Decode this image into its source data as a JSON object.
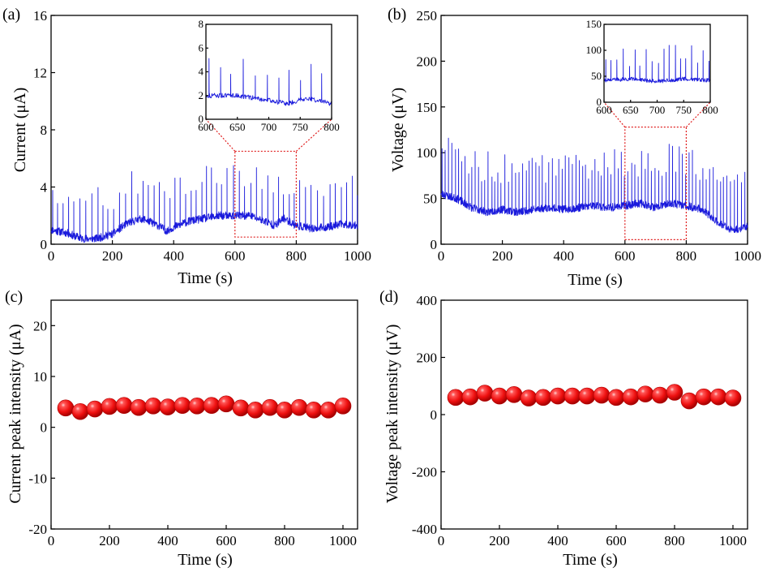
{
  "chart_data": [
    {
      "id": "a",
      "panel_label": "(a)",
      "type": "line",
      "xlabel": "Time (s)",
      "ylabel": "Current (μA)",
      "xlim": [
        0,
        1000
      ],
      "ylim": [
        0,
        16
      ],
      "xticks": [
        0,
        200,
        400,
        600,
        800,
        1000
      ],
      "yticks": [
        0,
        4,
        8,
        12,
        16
      ],
      "series": [
        {
          "color": "#1a1adc",
          "pulse_period_s": 18,
          "baseline": [
            [
              0,
              1.0
            ],
            [
              50,
              0.8
            ],
            [
              100,
              0.4
            ],
            [
              150,
              0.4
            ],
            [
              200,
              0.7
            ],
            [
              250,
              1.5
            ],
            [
              300,
              1.8
            ],
            [
              350,
              1.3
            ],
            [
              380,
              0.9
            ],
            [
              400,
              1.2
            ],
            [
              450,
              1.6
            ],
            [
              500,
              1.8
            ],
            [
              550,
              2.0
            ],
            [
              600,
              2.0
            ],
            [
              650,
              2.0
            ],
            [
              700,
              1.6
            ],
            [
              730,
              1.3
            ],
            [
              760,
              1.8
            ],
            [
              800,
              1.3
            ],
            [
              850,
              1.1
            ],
            [
              900,
              1.2
            ],
            [
              950,
              1.4
            ],
            [
              1000,
              1.3
            ]
          ],
          "peak_envelope": [
            [
              0,
              4.2
            ],
            [
              100,
              3.8
            ],
            [
              150,
              4.0
            ],
            [
              200,
              3.6
            ],
            [
              250,
              5.0
            ],
            [
              300,
              5.4
            ],
            [
              350,
              4.6
            ],
            [
              400,
              5.0
            ],
            [
              450,
              5.4
            ],
            [
              500,
              5.6
            ],
            [
              550,
              5.8
            ],
            [
              600,
              5.8
            ],
            [
              650,
              5.8
            ],
            [
              700,
              5.3
            ],
            [
              750,
              5.0
            ],
            [
              800,
              4.5
            ],
            [
              850,
              5.0
            ],
            [
              900,
              5.0
            ],
            [
              950,
              5.2
            ],
            [
              1000,
              5.2
            ]
          ]
        }
      ],
      "inset": {
        "xlim": [
          600,
          800
        ],
        "ylim": [
          0,
          8
        ],
        "xticks": [
          600,
          650,
          700,
          750,
          800
        ],
        "yticks": [
          0,
          2,
          4,
          6,
          8
        ],
        "zoom_box": {
          "x": [
            600,
            800
          ],
          "y": [
            0.5,
            6.5
          ]
        }
      }
    },
    {
      "id": "b",
      "panel_label": "(b)",
      "type": "line",
      "xlabel": "Time (s)",
      "ylabel": "Voltage (μV)",
      "xlim": [
        0,
        1000
      ],
      "ylim": [
        0,
        250
      ],
      "xticks": [
        0,
        200,
        400,
        600,
        800,
        1000
      ],
      "yticks": [
        0,
        50,
        100,
        150,
        200,
        250
      ],
      "series": [
        {
          "color": "#1a1adc",
          "pulse_period_s": 11,
          "baseline": [
            [
              0,
              55
            ],
            [
              50,
              50
            ],
            [
              100,
              40
            ],
            [
              150,
              35
            ],
            [
              200,
              38
            ],
            [
              250,
              35
            ],
            [
              300,
              38
            ],
            [
              350,
              40
            ],
            [
              400,
              38
            ],
            [
              450,
              40
            ],
            [
              500,
              42
            ],
            [
              550,
              40
            ],
            [
              600,
              42
            ],
            [
              650,
              45
            ],
            [
              700,
              40
            ],
            [
              750,
              45
            ],
            [
              800,
              42
            ],
            [
              850,
              38
            ],
            [
              900,
              25
            ],
            [
              950,
              15
            ],
            [
              1000,
              20
            ]
          ],
          "peak_envelope": [
            [
              0,
              110
            ],
            [
              40,
              130
            ],
            [
              100,
              105
            ],
            [
              200,
              100
            ],
            [
              300,
              100
            ],
            [
              400,
              100
            ],
            [
              500,
              100
            ],
            [
              560,
              105
            ],
            [
              600,
              110
            ],
            [
              650,
              105
            ],
            [
              700,
              112
            ],
            [
              750,
              110
            ],
            [
              800,
              110
            ],
            [
              850,
              100
            ],
            [
              900,
              85
            ],
            [
              950,
              80
            ],
            [
              1000,
              90
            ]
          ]
        }
      ],
      "inset": {
        "xlim": [
          600,
          800
        ],
        "ylim": [
          0,
          150
        ],
        "xticks": [
          600,
          650,
          700,
          750,
          800
        ],
        "yticks": [
          0,
          50,
          100,
          150
        ],
        "zoom_box": {
          "x": [
            600,
            800
          ],
          "y": [
            5,
            128
          ]
        }
      }
    },
    {
      "id": "c",
      "panel_label": "(c)",
      "type": "scatter",
      "xlabel": "Time (s)",
      "ylabel": "Current peak intensity (μA)",
      "xlim": [
        0,
        1050
      ],
      "ylim": [
        -20,
        25
      ],
      "xticks": [
        0,
        200,
        400,
        600,
        800,
        1000
      ],
      "yticks": [
        -20,
        -10,
        0,
        10,
        20
      ],
      "marker_color": "#e01010",
      "series": [
        {
          "x": [
            50,
            100,
            150,
            200,
            250,
            300,
            350,
            400,
            450,
            500,
            550,
            600,
            650,
            700,
            750,
            800,
            850,
            900,
            950,
            1000
          ],
          "y": [
            3.8,
            3.1,
            3.6,
            4.1,
            4.3,
            3.9,
            4.2,
            4.0,
            4.3,
            4.2,
            4.3,
            4.6,
            3.8,
            3.4,
            3.9,
            3.4,
            3.9,
            3.4,
            3.4,
            4.2
          ]
        }
      ]
    },
    {
      "id": "d",
      "panel_label": "(d)",
      "type": "scatter",
      "xlabel": "Time (s)",
      "ylabel": "Voltage peak intensity (μV)",
      "xlim": [
        0,
        1050
      ],
      "ylim": [
        -400,
        400
      ],
      "xticks": [
        0,
        200,
        400,
        600,
        800,
        1000
      ],
      "yticks": [
        -400,
        -200,
        0,
        200,
        400
      ],
      "marker_color": "#e01010",
      "series": [
        {
          "x": [
            50,
            100,
            150,
            200,
            250,
            300,
            350,
            400,
            450,
            500,
            550,
            600,
            650,
            700,
            750,
            800,
            850,
            900,
            950,
            1000
          ],
          "y": [
            60,
            62,
            75,
            65,
            70,
            58,
            60,
            65,
            65,
            65,
            68,
            60,
            62,
            72,
            68,
            78,
            48,
            62,
            62,
            58
          ]
        }
      ]
    }
  ]
}
